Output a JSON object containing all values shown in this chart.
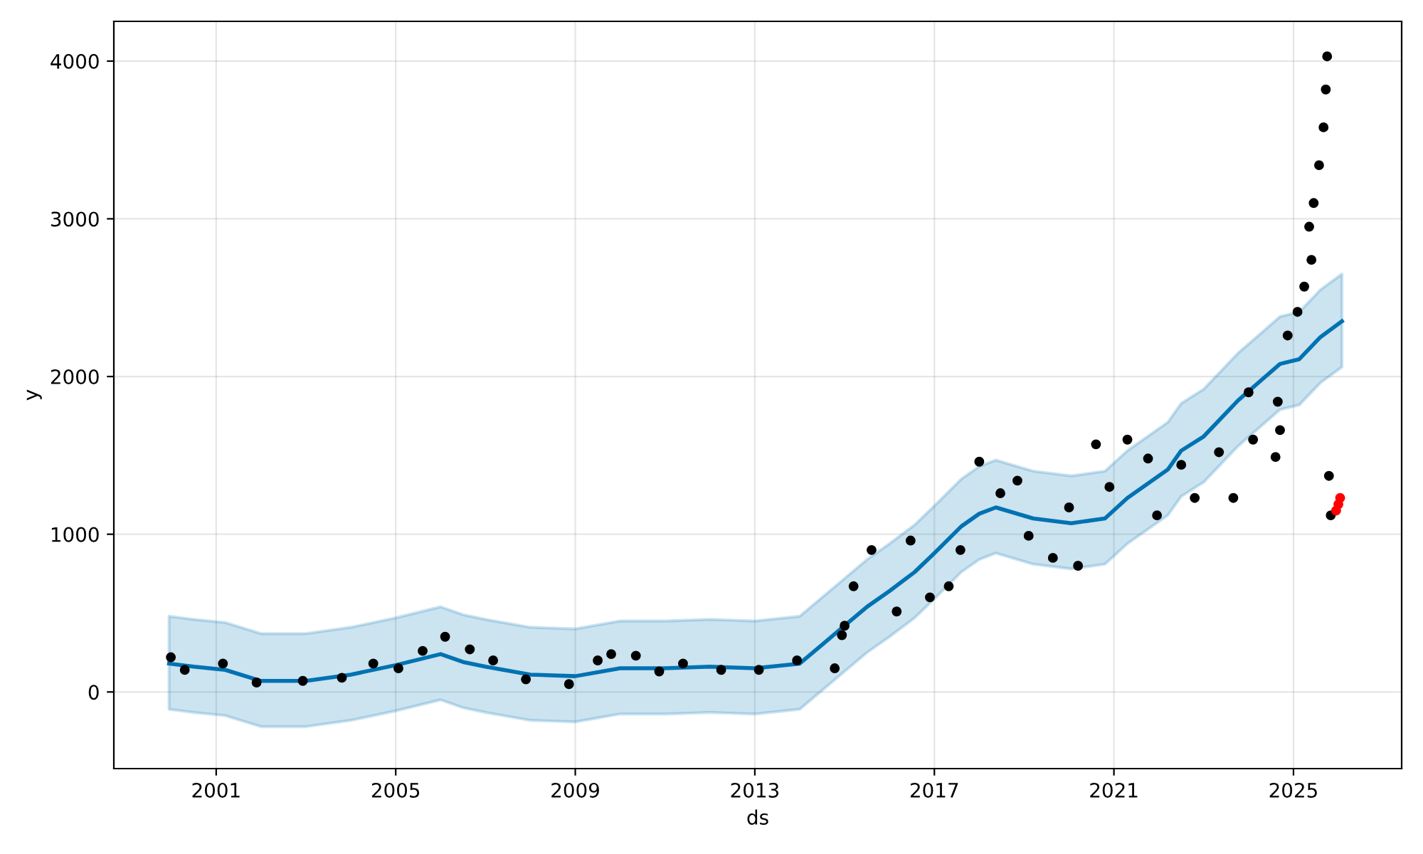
{
  "chart_data": {
    "type": "scatter",
    "xlabel": "ds",
    "ylabel": "y",
    "xlim": [
      1998.72,
      2027.41
    ],
    "xticks": [
      2001,
      2005,
      2009,
      2013,
      2017,
      2021,
      2025
    ],
    "ylim": [
      -486,
      4252
    ],
    "yticks": [
      0,
      1000,
      2000,
      3000,
      4000
    ],
    "grid": true,
    "series": [
      {
        "type": "line",
        "color": "#0072b2",
        "marker": "none",
        "line_style": "solid",
        "x": [
          1999.95,
          2000.5,
          2001.2,
          2002,
          2003,
          2004,
          2005,
          2006,
          2006.5,
          2007,
          2008,
          2009,
          2010,
          2011,
          2012,
          2013,
          2014,
          2014.5,
          2015,
          2015.5,
          2016,
          2016.56,
          2017,
          2017.6,
          2018,
          2018.37,
          2019.2,
          2020.05,
          2020.8,
          2021.3,
          2022.2,
          2022.5,
          2023,
          2023.77,
          2024.7,
          2025.13,
          2025.6,
          2026.08
        ],
        "values": [
          180,
          160,
          140,
          70,
          70,
          110,
          170,
          240,
          190,
          160,
          110,
          100,
          150,
          150,
          160,
          150,
          180,
          300,
          420,
          540,
          640,
          760,
          880,
          1050,
          1130,
          1170,
          1100,
          1070,
          1100,
          1230,
          1410,
          1530,
          1620,
          1850,
          2080,
          2110,
          2250,
          2350
        ],
        "upper": [
          480,
          460,
          440,
          370,
          370,
          410,
          470,
          540,
          490,
          460,
          410,
          400,
          450,
          450,
          460,
          450,
          480,
          600,
          720,
          840,
          940,
          1060,
          1180,
          1350,
          1430,
          1470,
          1400,
          1370,
          1400,
          1530,
          1710,
          1830,
          1920,
          2150,
          2380,
          2410,
          2550,
          2650
        ],
        "lower": [
          -110,
          -130,
          -150,
          -220,
          -220,
          -180,
          -120,
          -50,
          -100,
          -130,
          -180,
          -190,
          -140,
          -140,
          -130,
          -140,
          -110,
          10,
          130,
          250,
          350,
          470,
          590,
          760,
          840,
          880,
          810,
          780,
          810,
          940,
          1120,
          1240,
          1330,
          1560,
          1790,
          1820,
          1960,
          2060
        ]
      },
      {
        "color": "#000000",
        "marker": "circle",
        "x": [
          1999.99,
          2000.3,
          2001.15,
          2001.9,
          2002.93,
          2003.8,
          2004.5,
          2005.06,
          2005.6,
          2006.1,
          2006.65,
          2007.17,
          2007.9,
          2008.86,
          2009.5,
          2009.8,
          2010.35,
          2010.87,
          2011.4,
          2012.25,
          2013.09,
          2013.94,
          2014.78,
          2014.94,
          2015.0,
          2015.2,
          2015.6,
          2016.16,
          2016.47,
          2016.9,
          2017.32,
          2017.58,
          2018.0,
          2018.47,
          2018.85,
          2019.1,
          2019.64,
          2020.0,
          2020.2,
          2020.6,
          2020.9,
          2021.3,
          2021.76,
          2021.96,
          2022.5,
          2022.8,
          2023.34,
          2023.66,
          2024.0,
          2024.1,
          2024.6,
          2024.65,
          2024.7,
          2024.87,
          2025.09,
          2025.24,
          2025.35,
          2025.4,
          2025.45,
          2025.57,
          2025.67,
          2025.72,
          2025.75,
          2025.79,
          2025.83
        ],
        "values": [
          220,
          140,
          180,
          60,
          70,
          90,
          180,
          150,
          260,
          350,
          270,
          200,
          80,
          50,
          200,
          240,
          230,
          130,
          180,
          140,
          140,
          200,
          150,
          360,
          420,
          670,
          900,
          510,
          960,
          600,
          670,
          900,
          1460,
          1260,
          1340,
          990,
          850,
          1170,
          800,
          1570,
          1300,
          1600,
          1480,
          1120,
          1440,
          1230,
          1520,
          1230,
          1900,
          1600,
          1490,
          1840,
          1660,
          2260,
          2410,
          2570,
          2950,
          2740,
          3100,
          3340,
          3580,
          3820,
          4030,
          1370,
          1120
        ]
      },
      {
        "color": "#ff0000",
        "marker": "circle",
        "x": [
          2025.95,
          2026.0,
          2026.04
        ],
        "values": [
          1150,
          1190,
          1230
        ]
      }
    ]
  }
}
